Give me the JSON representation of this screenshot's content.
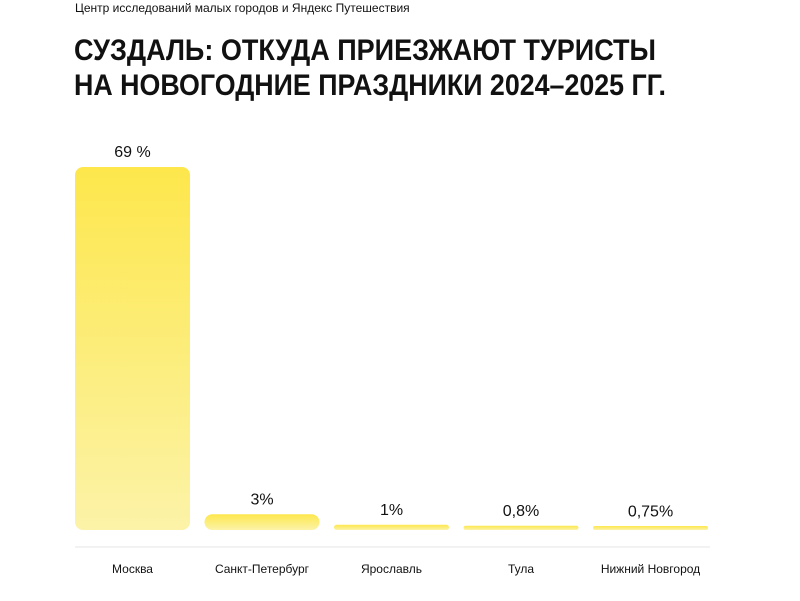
{
  "chart_data": {
    "type": "bar",
    "source": "Центр исследований малых городов и Яндекс Путешествия",
    "title": [
      "СУЗДАЛЬ: ОТКУДА ПРИЕЗЖАЮТ ТУРИСТЫ",
      "НА НОВОГОДНИЕ ПРАЗДНИКИ 2024–2025 ГГ."
    ],
    "categories": [
      "Москва",
      "Санкт-Петербург",
      "Ярославль",
      "Тула",
      "Нижний Новгород"
    ],
    "values": [
      69,
      3,
      1,
      0.8,
      0.75
    ],
    "value_labels": [
      "69 %",
      "3%",
      "1%",
      "0,8%",
      "0,75%"
    ],
    "color": "#fde74c"
  }
}
